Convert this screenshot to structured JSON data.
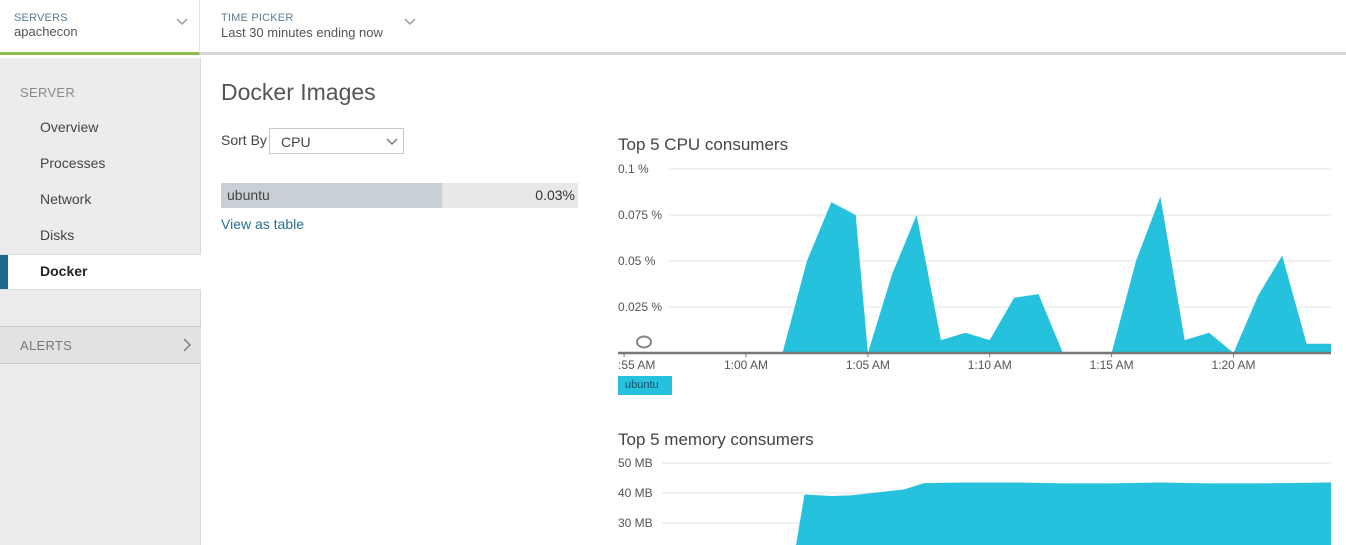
{
  "topbar": {
    "servers": {
      "label": "SERVERS",
      "value": "apachecon"
    },
    "time_picker": {
      "label": "TIME PICKER",
      "value": "Last 30 minutes ending now"
    }
  },
  "sidebar": {
    "section_label": "SERVER",
    "items": [
      {
        "label": "Overview"
      },
      {
        "label": "Processes"
      },
      {
        "label": "Network"
      },
      {
        "label": "Disks"
      },
      {
        "label": "Docker",
        "active": true
      }
    ],
    "alerts_label": "ALERTS"
  },
  "main": {
    "title": "Docker Images",
    "sort_by_label": "Sort By",
    "sort_by_value": "CPU",
    "images": [
      {
        "name": "ubuntu",
        "value": "0.03%",
        "fraction": 0.62
      }
    ],
    "view_as_table": "View as table"
  },
  "colors": {
    "series": "#26c1dd",
    "accent_green": "#8dbb4e",
    "active_blue": "#1b6a8c"
  },
  "chart_data": [
    {
      "type": "area",
      "title": "Top 5 CPU consumers",
      "ylim": [
        0,
        0.1
      ],
      "y_ticks": [
        {
          "value": 0.1,
          "label": "0.1 %"
        },
        {
          "value": 0.075,
          "label": "0.075 %"
        },
        {
          "value": 0.05,
          "label": "0.05 %"
        },
        {
          "value": 0.025,
          "label": "0.025 %"
        }
      ],
      "xlim": [
        54.75,
        84.0
      ],
      "x_ticks": [
        {
          "value": 55,
          "label": ":55 AM"
        },
        {
          "value": 60,
          "label": "1:00 AM"
        },
        {
          "value": 65,
          "label": "1:05 AM"
        },
        {
          "value": 70,
          "label": "1:10 AM"
        },
        {
          "value": 75,
          "label": "1:15 AM"
        },
        {
          "value": 80,
          "label": "1:20 AM"
        }
      ],
      "series": [
        {
          "name": "ubuntu",
          "x": [
            61.5,
            62.5,
            63.5,
            64.5,
            65.0,
            66.0,
            67.0,
            68.0,
            69.0,
            70.0,
            71.0,
            72.0,
            73.0,
            74.0,
            75.0,
            76.0,
            77.0,
            78.0,
            79.0,
            80.0,
            81.0,
            82.0,
            83.0,
            84.0
          ],
          "y": [
            0.0,
            0.05,
            0.082,
            0.075,
            0.0,
            0.043,
            0.075,
            0.007,
            0.011,
            0.007,
            0.03,
            0.032,
            0.0,
            0.0,
            0.0,
            0.05,
            0.085,
            0.007,
            0.011,
            0.0,
            0.031,
            0.053,
            0.005,
            0.005
          ]
        }
      ]
    },
    {
      "type": "area",
      "title": "Top 5 memory consumers",
      "ylim": [
        25,
        50
      ],
      "y_ticks": [
        {
          "value": 50,
          "label": "50 MB"
        },
        {
          "value": 40,
          "label": "40 MB"
        },
        {
          "value": 30,
          "label": "30 MB"
        }
      ],
      "xlim": [
        54.75,
        84.0
      ],
      "series": [
        {
          "name": "ubuntu",
          "x": [
            62.0,
            62.4,
            63.5,
            64.3,
            65.5,
            66.5,
            67.3,
            69.0,
            71.0,
            73.0,
            75.0,
            77.0,
            79.0,
            81.0,
            84.0
          ],
          "y": [
            0,
            39.5,
            39.0,
            39.2,
            40.3,
            41.2,
            43.3,
            43.5,
            43.5,
            43.2,
            43.2,
            43.5,
            43.2,
            43.2,
            43.5
          ]
        }
      ]
    }
  ]
}
